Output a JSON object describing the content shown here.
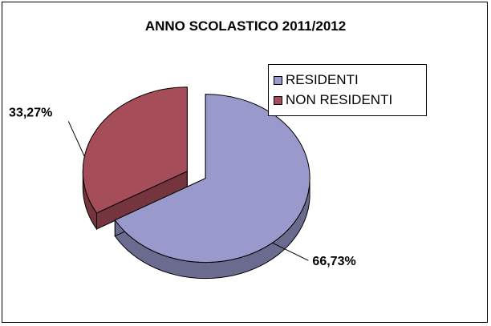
{
  "chart_data": {
    "type": "pie",
    "title": "ANNO SCOLASTICO 2011/2012",
    "categories": [
      "RESIDENTI",
      "NON RESIDENTI"
    ],
    "values": [
      66.73,
      33.27
    ],
    "data_labels": [
      "66,73%",
      "33,27%"
    ],
    "colors": {
      "RESIDENTI": "#9999cc",
      "NON RESIDENTI": "#a64d5a"
    },
    "side_colors": {
      "RESIDENTI": "#6b6b8f",
      "NON RESIDENTI": "#74353f"
    },
    "exploded_slice": "NON RESIDENTI",
    "legend_position": "right",
    "style": "3d-exploded"
  }
}
